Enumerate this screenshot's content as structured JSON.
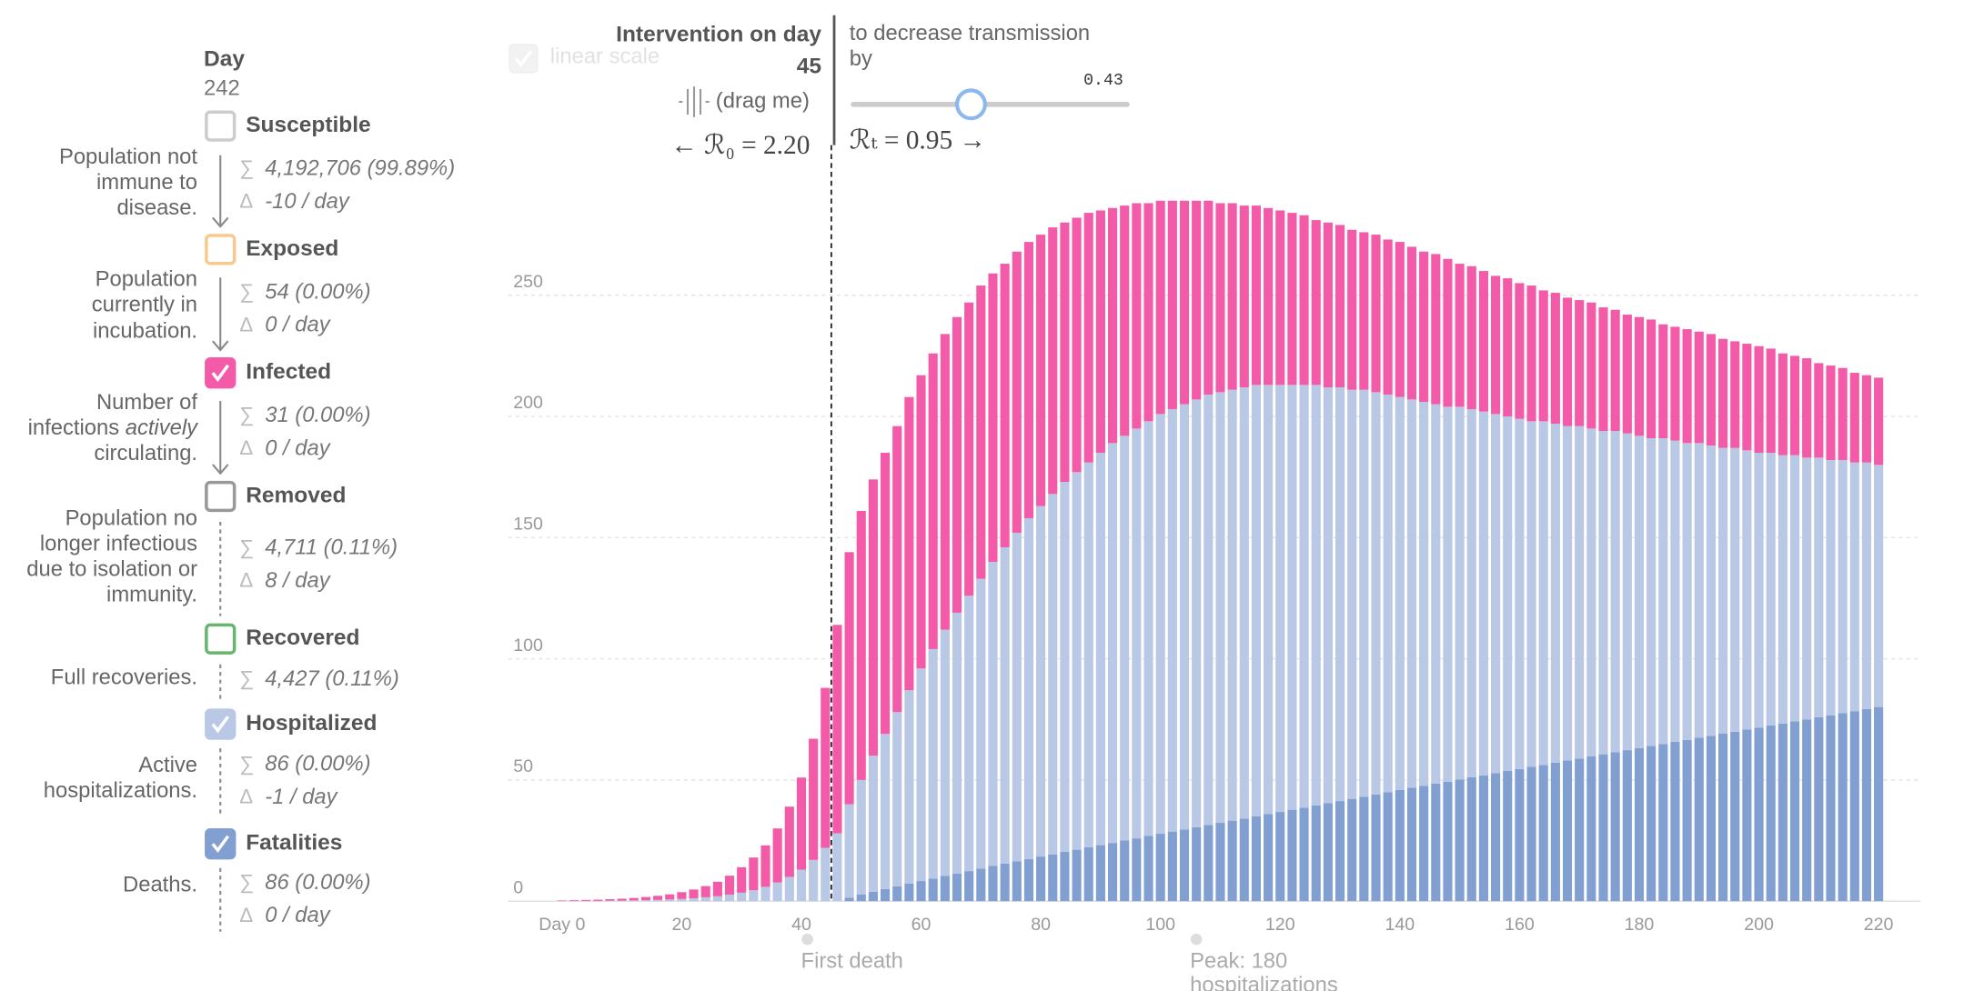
{
  "panel": {
    "day_label": "Day",
    "day": 242,
    "sum_symbol": "∑",
    "delta_symbol": "Δ",
    "scale_option": "linear scale",
    "items": [
      {
        "name": "Susceptible",
        "color": "#cccccc",
        "checked": false,
        "description": [
          "Population not",
          "immune to",
          "disease."
        ],
        "sum": "4,192,706 (99.89%)",
        "delta": "-10 / day"
      },
      {
        "name": "Exposed",
        "color": "#f9c88d",
        "checked": false,
        "description": [
          "Population",
          "currently in",
          "incubation."
        ],
        "sum": "54 (0.00%)",
        "delta": "0 / day"
      },
      {
        "description": [
          "Number of",
          {
            "text": "infections",
            "emphasis": "actively"
          },
          "circulating."
        ],
        "sum": "31 (0.00%)",
        "delta": "0 / day",
        "checked": true
      },
      {
        "name": "Removed",
        "color": "#999999",
        "checked": false,
        "description": [
          "Population no",
          "longer infectious",
          "due to isolation or",
          "immunity."
        ],
        "sum": "4,711 (0.11%)",
        "delta": "8 / day"
      },
      {
        "name": "Recovered",
        "color": "#6ab56e",
        "checked": false,
        "description": [
          "Full recoveries."
        ],
        "sum": "4,427 (0.11%)"
      },
      {
        "description": [
          "Active",
          "hospitalizations."
        ],
        "sum": "86 (0.00%)",
        "delta": "-1 / day",
        "checked": true
      },
      {
        "description": [
          "Deaths."
        ],
        "sum": "86 (0.00%)",
        "delta": "0 / day",
        "checked": true
      }
    ]
  },
  "intervention": {
    "title": "Intervention on day",
    "day": 45,
    "hint": "(drag me)",
    "r0_label": "← ℛ₀ = 2.20",
    "effect_label": [
      "to decrease transmission",
      "by"
    ],
    "strength": 0.43,
    "rt_label": "ℛₜ = 0.95 →"
  },
  "chart_data": {
    "type": "bar",
    "stacked": true,
    "grid": true,
    "x": [
      0,
      2,
      4,
      6,
      8,
      10,
      12,
      14,
      16,
      18,
      20,
      22,
      24,
      26,
      28,
      30,
      32,
      34,
      36,
      38,
      40,
      42,
      44,
      46,
      48,
      50,
      52,
      54,
      56,
      58,
      60,
      62,
      64,
      66,
      68,
      70,
      72,
      74,
      76,
      78,
      80,
      82,
      84,
      86,
      88,
      90,
      92,
      94,
      96,
      98,
      100,
      102,
      104,
      106,
      108,
      110,
      112,
      114,
      116,
      118,
      120,
      122,
      124,
      126,
      128,
      130,
      132,
      134,
      136,
      138,
      140,
      142,
      144,
      146,
      148,
      150,
      152,
      154,
      156,
      158,
      160,
      162,
      164,
      166,
      168,
      170,
      172,
      174,
      176,
      178,
      180,
      182,
      184,
      186,
      188,
      190,
      192,
      194,
      196,
      198,
      200,
      202,
      204,
      206,
      208,
      210,
      212,
      214,
      216,
      218,
      220
    ],
    "series": [
      {
        "name": "Fatalities",
        "color": "#819fd1",
        "values": [
          0,
          0,
          0,
          0,
          0,
          0,
          0,
          0,
          0,
          0,
          0,
          0,
          0,
          0,
          0,
          0,
          0,
          0,
          0,
          0,
          0,
          0,
          0,
          0,
          1.4,
          2.7,
          3.9,
          5.0,
          6.1,
          7.2,
          8.3,
          9.3,
          10.4,
          11.4,
          12.4,
          13.4,
          14.5,
          15.5,
          16.4,
          17.4,
          18.4,
          19.3,
          20.3,
          21.2,
          22.2,
          23.1,
          24.0,
          25.0,
          25.9,
          26.9,
          27.8,
          28.7,
          29.6,
          30.5,
          31.4,
          32.3,
          33.2,
          34.1,
          35.0,
          35.9,
          36.8,
          37.7,
          38.6,
          39.5,
          40.4,
          41.3,
          42.2,
          43.1,
          44.0,
          45.0,
          45.9,
          46.8,
          47.6,
          48.5,
          49.3,
          50.2,
          51.1,
          51.9,
          52.8,
          53.7,
          54.5,
          55.4,
          56.2,
          57.1,
          58.0,
          58.8,
          59.7,
          60.6,
          61.4,
          62.3,
          63.1,
          64.0,
          64.8,
          65.7,
          66.5,
          67.4,
          68.2,
          69.1,
          69.9,
          70.8,
          71.6,
          72.5,
          73.3,
          74.2,
          75.0,
          75.9,
          76.7,
          77.6,
          78.4,
          79.3,
          80.1
        ]
      },
      {
        "name": "Hospitalized",
        "color": "#b9c8e4",
        "values": [
          0.1,
          0.1,
          0.1,
          0.1,
          0.2,
          0.2,
          0.3,
          0.4,
          0.5,
          0.7,
          0.9,
          1.2,
          1.6,
          2.0,
          2.7,
          3.5,
          4.5,
          5.9,
          7.7,
          10,
          13,
          17,
          22,
          28,
          38.6,
          47.3,
          56.1,
          64.0,
          71.9,
          79.8,
          87.7,
          94.7,
          101.6,
          107.6,
          113.6,
          119.6,
          125.5,
          130.5,
          135.6,
          140.6,
          144.6,
          148.7,
          152.7,
          155.8,
          158.8,
          161.9,
          165.0,
          167.0,
          169.1,
          171.1,
          173.2,
          174.3,
          175.4,
          176.5,
          177.6,
          177.7,
          177.8,
          177.9,
          178.0,
          177.1,
          176.2,
          175.3,
          174.4,
          173.5,
          171.6,
          170.7,
          168.8,
          167.9,
          166.0,
          164.0,
          162.1,
          160.2,
          158.4,
          156.5,
          154.7,
          153.8,
          151.9,
          150.1,
          148.2,
          146.3,
          144.5,
          142.6,
          141.8,
          139.9,
          138.0,
          137.2,
          135.3,
          133.4,
          132.6,
          130.7,
          128.9,
          127.0,
          126.2,
          124.3,
          122.5,
          121.6,
          119.8,
          117.9,
          117.1,
          115.2,
          113.4,
          112.5,
          110.7,
          109.8,
          108.0,
          107.1,
          105.3,
          104.4,
          102.6,
          101.7,
          99.9
        ]
      },
      {
        "name": "Infected",
        "color": "#f35ba8",
        "values": [
          0.2,
          0.3,
          0.4,
          0.5,
          0.6,
          0.8,
          1.0,
          1.3,
          1.7,
          2.1,
          2.8,
          3.6,
          4.6,
          6,
          7.8,
          10.5,
          13.5,
          17.1,
          22.3,
          29,
          38,
          50,
          66,
          86,
          104,
          111,
          114,
          116,
          118,
          121,
          121,
          122,
          122,
          122,
          121,
          121,
          119,
          117,
          116,
          114,
          112,
          110,
          107,
          105,
          103,
          100,
          97,
          95,
          93,
          90,
          88,
          86,
          84,
          82,
          80,
          78,
          77,
          75,
          74,
          73,
          72,
          71,
          70,
          68,
          68,
          67,
          66,
          65,
          65,
          64,
          64,
          63,
          62,
          62,
          61,
          59,
          59,
          58,
          57,
          57,
          56,
          56,
          54,
          54,
          53,
          52,
          52,
          51,
          50,
          49,
          49,
          49,
          47,
          47,
          47,
          46,
          46,
          45,
          44,
          44,
          44,
          43,
          42,
          41,
          41,
          39,
          39,
          38,
          37,
          36,
          36
        ]
      }
    ],
    "xlim": [
      -9,
      227
    ],
    "ylim": [
      0,
      290
    ],
    "xticks": [
      {
        "value": 0,
        "label": "Day 0"
      },
      20,
      40,
      60,
      80,
      100,
      120,
      140,
      160,
      180,
      200,
      220
    ],
    "yticks": [
      0,
      50,
      100,
      150,
      200,
      250
    ],
    "annotations": [
      {
        "x": 41,
        "lines": [
          "First death"
        ]
      },
      {
        "x": 106,
        "lines": [
          "Peak: 180",
          "hospitalizations"
        ]
      }
    ]
  }
}
